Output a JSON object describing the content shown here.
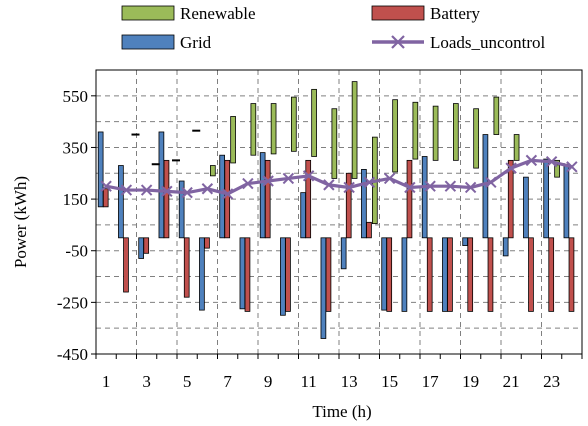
{
  "chart_data": {
    "type": "bar",
    "title": "",
    "xlabel": "Time (h)",
    "ylabel": "Power (kWh)",
    "ylim": [
      -450,
      650
    ],
    "yticks": [
      -450,
      -250,
      -50,
      150,
      350,
      550
    ],
    "x": [
      1,
      2,
      3,
      4,
      5,
      6,
      7,
      8,
      9,
      10,
      11,
      12,
      13,
      14,
      15,
      16,
      17,
      18,
      19,
      20,
      21,
      22,
      23,
      24
    ],
    "xtick_labels": [
      "1",
      "3",
      "5",
      "7",
      "9",
      "11",
      "13",
      "15",
      "17",
      "19",
      "21",
      "23"
    ],
    "grid": true,
    "legend_position": "top",
    "bar_style": "floating",
    "colors": {
      "renewable": "#9BBB59",
      "battery": "#C0504D",
      "grid": "#4F81BD",
      "loads": "#8064A2"
    },
    "legend": {
      "renewable": "Renewable",
      "battery": "Battery",
      "grid": "Grid",
      "loads": "Loads_uncontrol"
    },
    "series": [
      {
        "name": "Grid",
        "key": "grid",
        "values": [
          [
            120,
            410
          ],
          [
            0,
            280
          ],
          [
            0,
            -80
          ],
          [
            0,
            410
          ],
          [
            0,
            220
          ],
          [
            0,
            -280
          ],
          [
            0,
            320
          ],
          [
            0,
            -275
          ],
          [
            0,
            330
          ],
          [
            0,
            -300
          ],
          [
            0,
            175
          ],
          [
            0,
            -390
          ],
          [
            0,
            -120
          ],
          [
            0,
            265
          ],
          [
            0,
            -280
          ],
          [
            0,
            -285
          ],
          [
            0,
            315
          ],
          [
            0,
            -285
          ],
          [
            0,
            -30
          ],
          [
            0,
            400
          ],
          [
            0,
            -70
          ],
          [
            0,
            235
          ],
          [
            0,
            305
          ],
          [
            0,
            285
          ]
        ]
      },
      {
        "name": "Battery",
        "key": "battery",
        "values": [
          [
            120,
            190
          ],
          [
            0,
            -210
          ],
          [
            0,
            -60
          ],
          [
            0,
            300
          ],
          [
            0,
            -230
          ],
          [
            0,
            -40
          ],
          [
            0,
            300
          ],
          [
            0,
            -285
          ],
          [
            0,
            300
          ],
          [
            0,
            -285
          ],
          [
            0,
            300
          ],
          [
            0,
            -285
          ],
          [
            0,
            250
          ],
          [
            0,
            60
          ],
          [
            0,
            -285
          ],
          [
            0,
            300
          ],
          [
            0,
            -285
          ],
          [
            0,
            -285
          ],
          [
            0,
            -285
          ],
          [
            0,
            -285
          ],
          [
            0,
            300
          ],
          [
            0,
            -285
          ],
          [
            0,
            -285
          ],
          [
            0,
            -285
          ]
        ]
      },
      {
        "name": "Renewable",
        "key": "renewable",
        "values": [
          [
            0,
            0
          ],
          [
            0,
            0
          ],
          [
            0,
            0
          ],
          [
            0,
            0
          ],
          [
            0,
            0
          ],
          [
            240,
            280
          ],
          [
            290,
            470
          ],
          [
            320,
            520
          ],
          [
            325,
            520
          ],
          [
            335,
            545
          ],
          [
            315,
            575
          ],
          [
            230,
            500
          ],
          [
            230,
            605
          ],
          [
            55,
            390
          ],
          [
            255,
            535
          ],
          [
            305,
            525
          ],
          [
            300,
            510
          ],
          [
            300,
            520
          ],
          [
            270,
            500
          ],
          [
            400,
            545
          ],
          [
            300,
            400
          ],
          [
            0,
            0
          ],
          [
            235,
            300
          ],
          [
            0,
            0
          ]
        ]
      },
      {
        "name": "Loads_uncontrol",
        "key": "loads",
        "type": "line",
        "values": [
          200,
          185,
          185,
          180,
          175,
          190,
          170,
          210,
          220,
          230,
          240,
          205,
          195,
          215,
          230,
          195,
          200,
          200,
          195,
          215,
          270,
          300,
          295,
          275
        ]
      }
    ],
    "minus_markers": [
      {
        "x": 2.45,
        "y": 400
      },
      {
        "x": 3.45,
        "y": 285
      },
      {
        "x": 4.45,
        "y": 300
      },
      {
        "x": 5.45,
        "y": 415
      },
      {
        "x": 23.45,
        "y": 285
      }
    ]
  }
}
